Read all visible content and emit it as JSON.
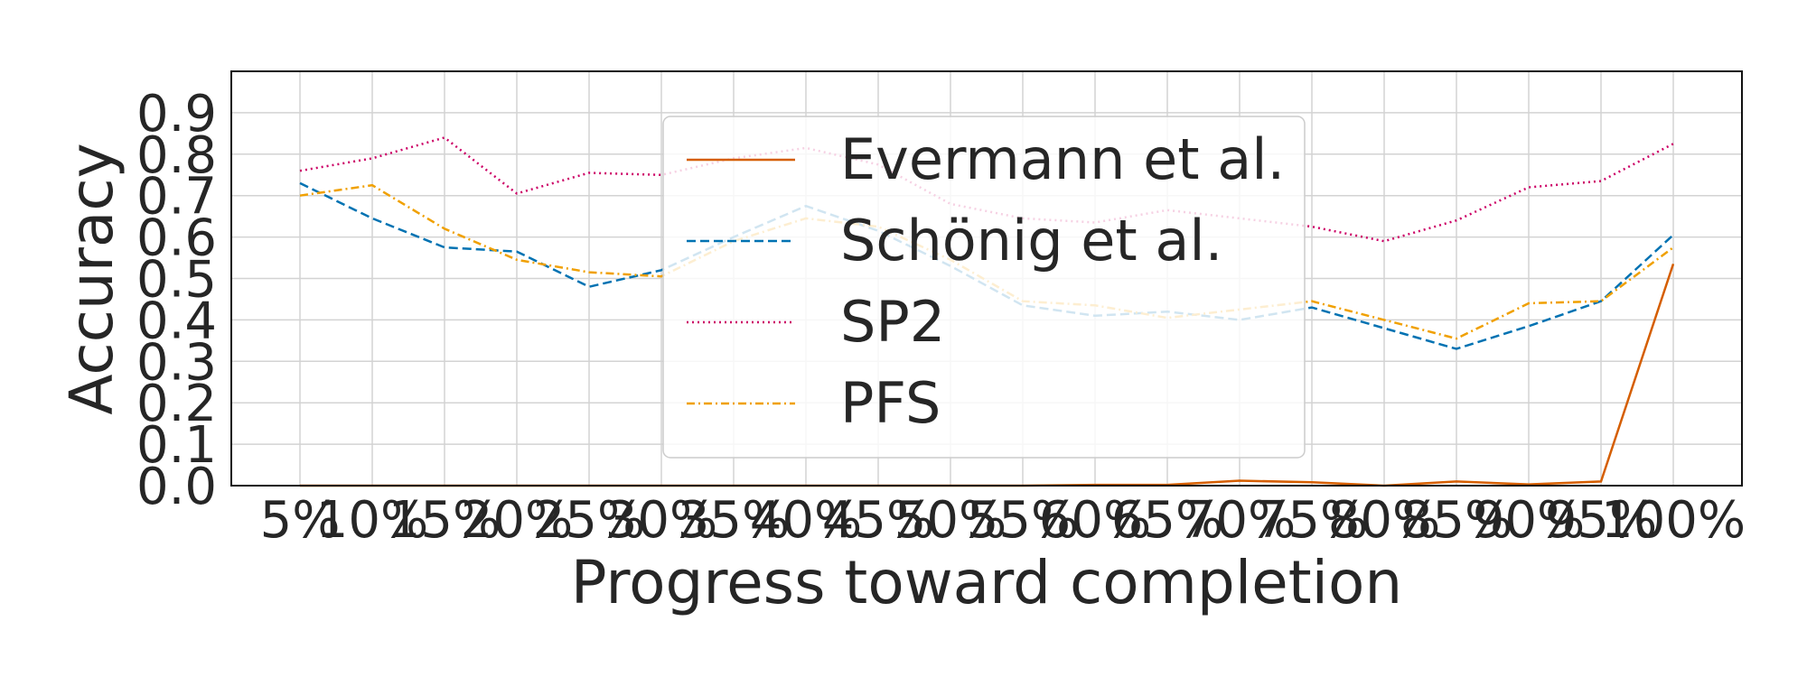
{
  "chart_data": {
    "type": "line",
    "title": "",
    "xlabel": "Progress toward completion",
    "ylabel": "Accuracy",
    "categories": [
      "5%",
      "10%",
      "15%",
      "20%",
      "25%",
      "30%",
      "35%",
      "40%",
      "45%",
      "50%",
      "55%",
      "60%",
      "65%",
      "70%",
      "75%",
      "80%",
      "85%",
      "90%",
      "95%",
      "100%"
    ],
    "y_ticks": [
      "0.0",
      "0.1",
      "0.2",
      "0.3",
      "0.4",
      "0.5",
      "0.6",
      "0.7",
      "0.8",
      "0.9"
    ],
    "ylim": [
      0,
      1.0
    ],
    "grid": true,
    "legend_position": "upper center",
    "series": [
      {
        "name": "Evermann et al.",
        "color": "#d55e00",
        "dash": "solid",
        "values": [
          0.0,
          0.0,
          0.0,
          0.0,
          0.0,
          0.0,
          0.0,
          0.0,
          0.0,
          0.0,
          0.0,
          0.002,
          0.002,
          0.012,
          0.008,
          0.0,
          0.01,
          0.003,
          0.01,
          0.535
        ]
      },
      {
        "name": "Schönig et al.",
        "color": "#0072b2",
        "dash": "dashed",
        "values": [
          0.73,
          0.645,
          0.575,
          0.565,
          0.48,
          0.52,
          0.6,
          0.675,
          0.615,
          0.53,
          0.435,
          0.41,
          0.42,
          0.4,
          0.43,
          0.38,
          0.33,
          0.385,
          0.445,
          0.605
        ]
      },
      {
        "name": "SP2",
        "color": "#cc0066",
        "dash": "dotted",
        "values": [
          0.76,
          0.79,
          0.84,
          0.705,
          0.755,
          0.75,
          0.79,
          0.815,
          0.775,
          0.68,
          0.645,
          0.635,
          0.665,
          0.645,
          0.625,
          0.59,
          0.64,
          0.72,
          0.735,
          0.825
        ]
      },
      {
        "name": "PFS",
        "color": "#f0a000",
        "dash": "dashdot",
        "values": [
          0.7,
          0.725,
          0.62,
          0.545,
          0.515,
          0.505,
          0.59,
          0.645,
          0.625,
          0.545,
          0.445,
          0.435,
          0.405,
          0.425,
          0.445,
          0.4,
          0.355,
          0.44,
          0.445,
          0.575
        ]
      }
    ]
  }
}
